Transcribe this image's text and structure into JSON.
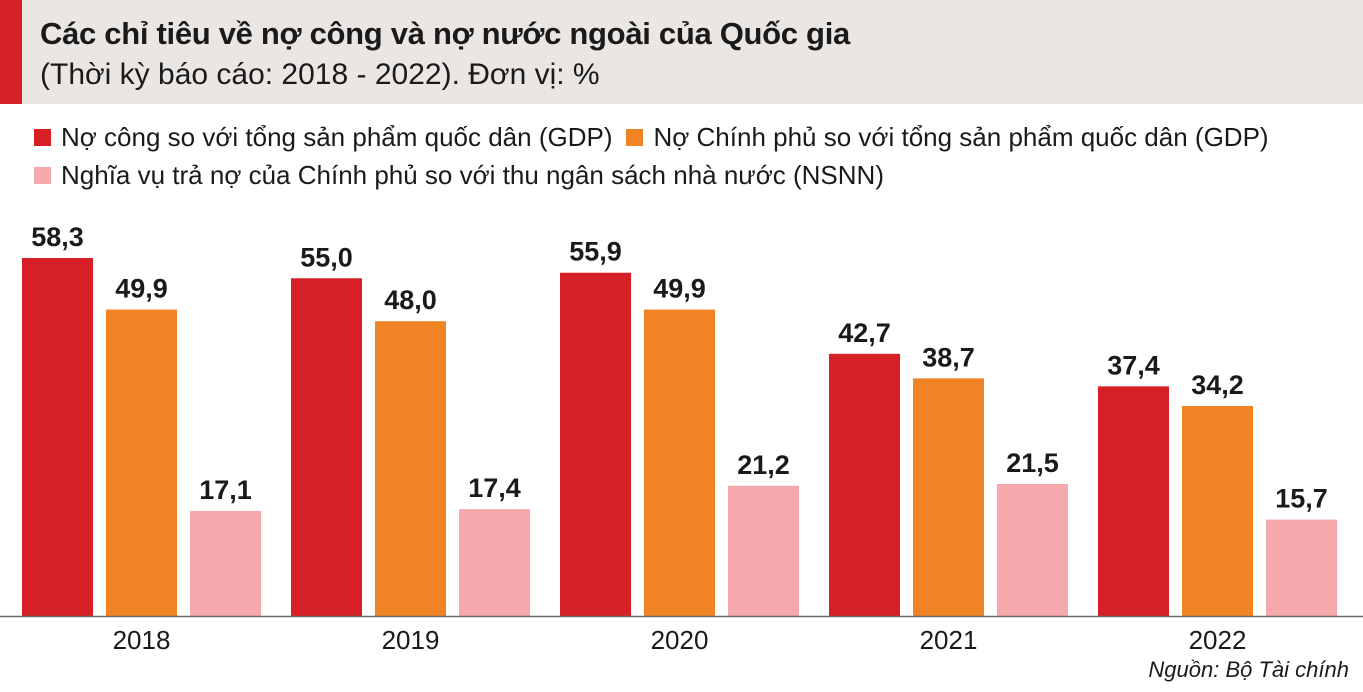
{
  "header": {
    "title": "Các chỉ tiêu về nợ công và nợ nước ngoài của Quốc gia",
    "subtitle": "(Thời kỳ báo cáo: 2018 - 2022). Đơn vị: %"
  },
  "legend": [
    {
      "label": "Nợ công so với tổng sản phẩm quốc dân (GDP)",
      "color": "#d71f26"
    },
    {
      "label": "Nợ Chính phủ so với tổng sản phẩm quốc dân (GDP)",
      "color": "#f08424"
    },
    {
      "label": "Nghĩa vụ trả nợ của Chính phủ so với thu ngân sách nhà nước (NSNN)",
      "color": "#f6a9ac"
    }
  ],
  "source": "Nguồn: Bộ Tài chính",
  "chart_data": {
    "type": "bar",
    "title": "Các chỉ tiêu về nợ công và nợ nước ngoài của Quốc gia",
    "subtitle": "(Thời kỳ báo cáo: 2018 - 2022). Đơn vị: %",
    "categories": [
      "2018",
      "2019",
      "2020",
      "2021",
      "2022"
    ],
    "series": [
      {
        "name": "Nợ công so với tổng sản phẩm quốc dân (GDP)",
        "color": "#d71f26",
        "values": [
          58.3,
          55.0,
          55.9,
          42.7,
          37.4
        ],
        "labels": [
          "58,3",
          "55,0",
          "55,9",
          "42,7",
          "37,4"
        ]
      },
      {
        "name": "Nợ Chính phủ so với tổng sản phẩm quốc dân (GDP)",
        "color": "#f08424",
        "values": [
          49.9,
          48.0,
          49.9,
          38.7,
          34.2
        ],
        "labels": [
          "49,9",
          "48,0",
          "49,9",
          "38,7",
          "34,2"
        ]
      },
      {
        "name": "Nghĩa vụ trả nợ của Chính phủ so với thu ngân sách nhà nước (NSNN)",
        "color": "#f6a9ac",
        "values": [
          17.1,
          17.4,
          21.2,
          21.5,
          15.7
        ],
        "labels": [
          "17,1",
          "17,4",
          "21,2",
          "21,5",
          "15,7"
        ]
      }
    ],
    "ylim": [
      0,
      58.3
    ],
    "grid": false,
    "legend_position": "top"
  }
}
